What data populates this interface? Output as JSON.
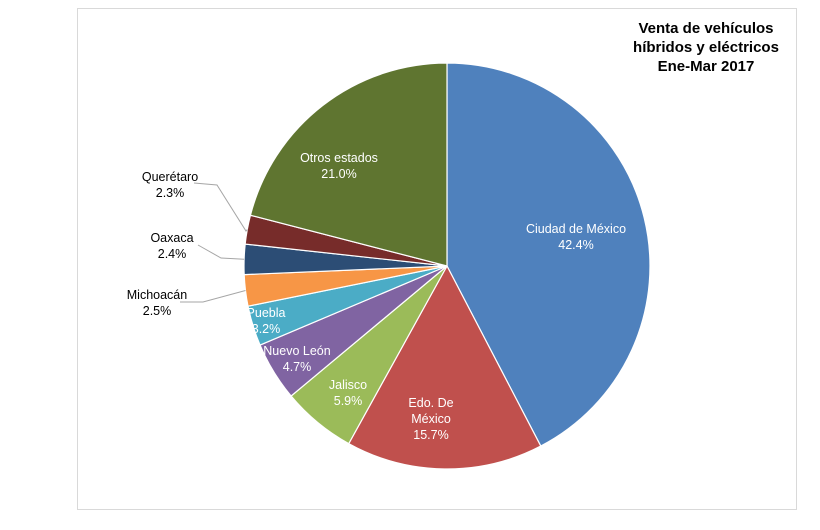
{
  "chart_data": {
    "type": "pie",
    "title": [
      "Venta de vehículos",
      "híbridos y eléctricos",
      "Ene-Mar 2017"
    ],
    "slices": [
      {
        "label": [
          "Ciudad de México"
        ],
        "value": 42.4,
        "pct": "42.4%",
        "color": "#4f81bd"
      },
      {
        "label": [
          "Edo. De",
          "México"
        ],
        "value": 15.7,
        "pct": "15.7%",
        "color": "#c0504d"
      },
      {
        "label": [
          "Jalisco"
        ],
        "value": 5.9,
        "pct": "5.9%",
        "color": "#9bbb59"
      },
      {
        "label": [
          "Nuevo León"
        ],
        "value": 4.7,
        "pct": "4.7%",
        "color": "#8064a2"
      },
      {
        "label": [
          "Puebla"
        ],
        "value": 3.2,
        "pct": "3.2%",
        "color": "#4bacc6"
      },
      {
        "label": [
          "Michoacán"
        ],
        "value": 2.5,
        "pct": "2.5%",
        "color": "#f79646"
      },
      {
        "label": [
          "Oaxaca"
        ],
        "value": 2.4,
        "pct": "2.4%",
        "color": "#2c4d75"
      },
      {
        "label": [
          "Querétaro"
        ],
        "value": 2.3,
        "pct": "2.3%",
        "color": "#772c2a"
      },
      {
        "label": [
          "Otros estados"
        ],
        "value": 21.0,
        "pct": "21.0%",
        "color": "#5f7530"
      }
    ]
  }
}
